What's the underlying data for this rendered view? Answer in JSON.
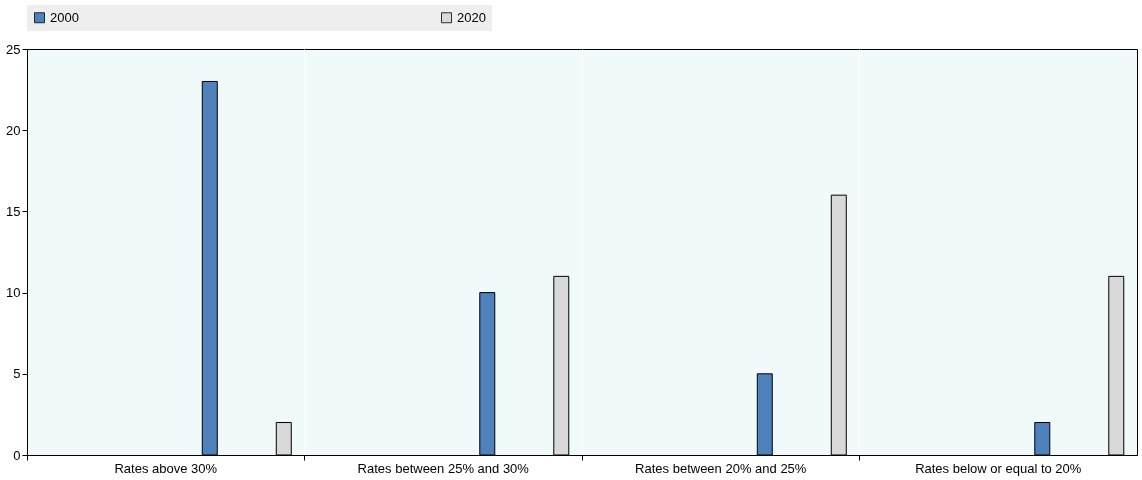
{
  "chart_data": {
    "type": "bar",
    "categories": [
      "Rates above 30%",
      "Rates between 25% and 30%",
      "Rates between 20% and 25%",
      "Rates below or equal to 20%"
    ],
    "series": [
      {
        "name": "2000",
        "color": "#4f81bd",
        "values": [
          23,
          10,
          5,
          2
        ]
      },
      {
        "name": "2020",
        "color": "#d9d9d9",
        "values": [
          2,
          11,
          16,
          11
        ]
      }
    ],
    "ylim": [
      0,
      25
    ],
    "yticks": [
      0,
      5,
      10,
      15,
      20,
      25
    ],
    "grid": false,
    "legend": "top"
  }
}
